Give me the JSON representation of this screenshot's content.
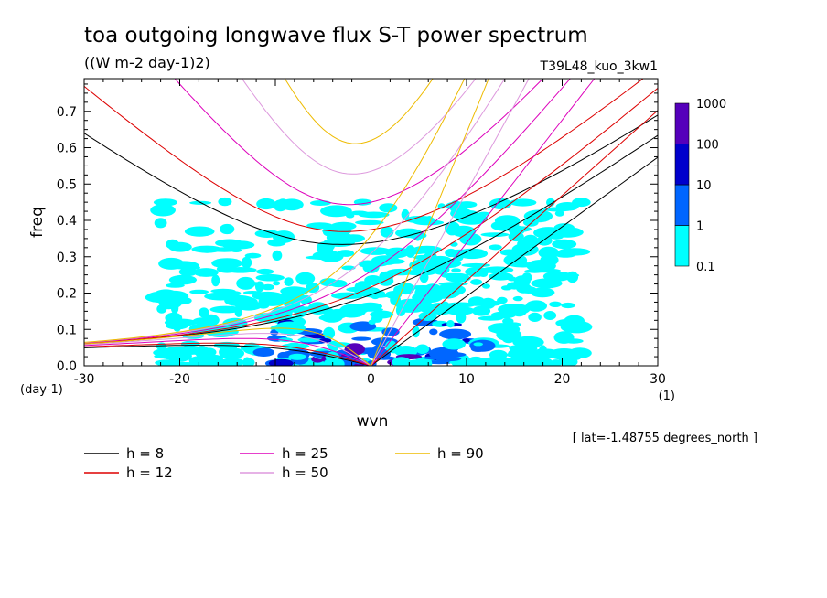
{
  "chart_data": {
    "type": "heatmap",
    "title": "toa outgoing longwave flux S-T power spectrum",
    "subtitle": "((W m-2 day-1)2)",
    "run_label": "T39L48_kuo_3kw1",
    "xlabel": "wvn",
    "ylabel": "freq",
    "x_unit": "(1)",
    "y_unit": "(day-1)",
    "xlim": [
      -30,
      30
    ],
    "ylim": [
      0,
      0.79
    ],
    "x_ticks": [
      -30,
      -20,
      -10,
      0,
      10,
      20,
      30
    ],
    "x_tick_labels": [
      "-30",
      "-20",
      "-10",
      "0",
      "10",
      "20",
      "30"
    ],
    "y_ticks": [
      0,
      0.1,
      0.2,
      0.3,
      0.4,
      0.5,
      0.6,
      0.7
    ],
    "y_tick_labels": [
      "0.0",
      "0.1",
      "0.2",
      "0.3",
      "0.4",
      "0.5",
      "0.6",
      "0.7"
    ],
    "colorbar": {
      "levels": [
        0.1,
        1,
        10,
        100,
        1000
      ],
      "labels": [
        "0.1",
        "1",
        "10",
        "100",
        "1000"
      ],
      "colors": [
        "#00ffff",
        "#0066ff",
        "#0000cc",
        "#5500bb"
      ]
    },
    "annotation": "[ lat=-1.48755 degrees_north ]",
    "dispersion_curves": [
      {
        "label": "h =  8",
        "h": 8,
        "color": "#000000"
      },
      {
        "label": "h = 12",
        "h": 12,
        "color": "#dd0000"
      },
      {
        "label": "h = 25",
        "h": 25,
        "color": "#dd00bb"
      },
      {
        "label": "h = 50",
        "h": 50,
        "color": "#dd99dd"
      },
      {
        "label": "h = 90",
        "h": 90,
        "color": "#eebb00"
      }
    ],
    "grid": false
  }
}
